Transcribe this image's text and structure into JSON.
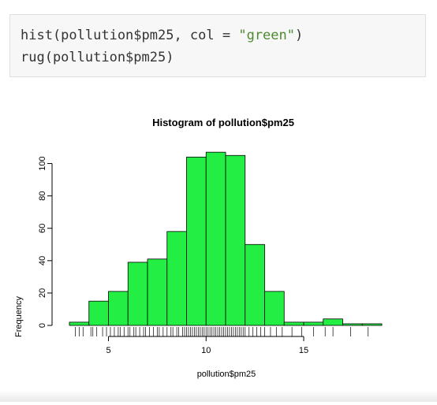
{
  "code_cell": {
    "line1_prefix": "hist(pollution$pm25, col = ",
    "line1_string": "\"green\"",
    "line1_suffix": ")",
    "line2": "rug(pollution$pm25)"
  },
  "chart_data": {
    "type": "bar",
    "title": "Histogram of pollution$pm25",
    "xlabel": "pollution$pm25",
    "ylabel": "Frequency",
    "bar_color": "#22ee44",
    "bin_edges": [
      3,
      4,
      5,
      6,
      7,
      8,
      9,
      10,
      11,
      12,
      13,
      14,
      15,
      16,
      17,
      18,
      19
    ],
    "values": [
      2,
      15,
      21,
      39,
      41,
      58,
      104,
      107,
      105,
      50,
      21,
      2,
      2,
      4,
      1,
      1
    ],
    "xticks": [
      5,
      10,
      15
    ],
    "yticks": [
      0,
      20,
      40,
      60,
      80,
      100
    ],
    "xlim": [
      3,
      19
    ],
    "ylim": [
      0,
      110
    ],
    "rug": [
      3.3,
      3.5,
      3.7,
      4.1,
      4.2,
      4.4,
      4.7,
      4.9,
      5.1,
      5.3,
      5.5,
      5.6,
      5.8,
      6.0,
      6.1,
      6.3,
      6.4,
      6.6,
      6.8,
      6.9,
      7.1,
      7.3,
      7.5,
      7.6,
      7.8,
      8.0,
      8.2,
      8.3,
      8.5,
      8.6,
      8.8,
      8.9,
      9.0,
      9.1,
      9.2,
      9.3,
      9.4,
      9.5,
      9.6,
      9.7,
      9.8,
      9.9,
      10.0,
      10.1,
      10.2,
      10.3,
      10.4,
      10.5,
      10.6,
      10.7,
      10.8,
      10.9,
      11.0,
      11.1,
      11.2,
      11.3,
      11.4,
      11.5,
      11.6,
      11.7,
      11.8,
      11.9,
      12.0,
      12.2,
      12.4,
      12.6,
      12.8,
      13.0,
      13.3,
      13.6,
      13.9,
      14.4,
      14.9,
      15.5,
      16.1,
      16.5,
      17.4,
      18.3
    ]
  }
}
